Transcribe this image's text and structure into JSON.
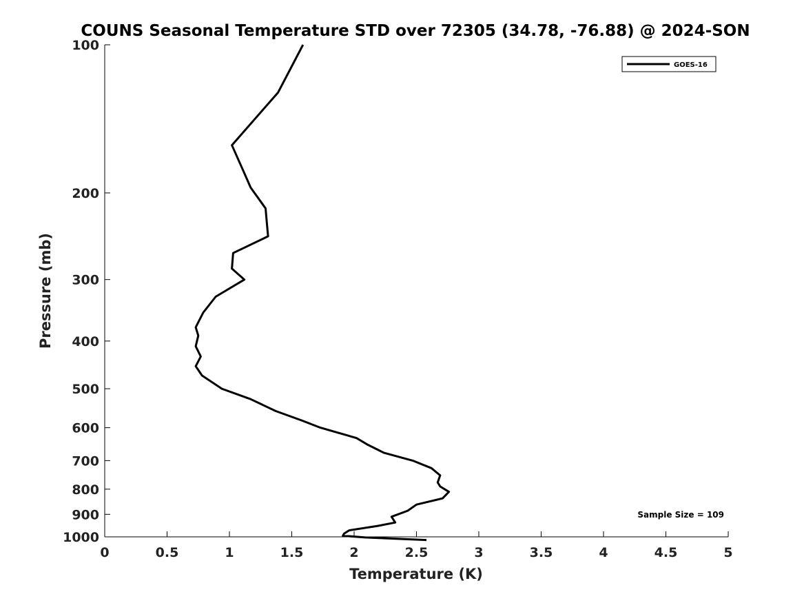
{
  "chart_data": {
    "type": "line",
    "title": "COUNS Seasonal Temperature STD over 72305 (34.78, -76.88) @ 2024-SON",
    "xlabel": "Temperature (K)",
    "ylabel": "Pressure (mb)",
    "xlim": [
      0,
      5
    ],
    "ylim": [
      100,
      1000
    ],
    "y_scale": "log",
    "y_direction": "reversed",
    "x_ticks": [
      0,
      0.5,
      1,
      1.5,
      2,
      2.5,
      3,
      3.5,
      4,
      4.5,
      5
    ],
    "x_tick_labels": [
      "0",
      "0.5",
      "1",
      "1.5",
      "2",
      "2.5",
      "3",
      "3.5",
      "4",
      "4.5",
      "5"
    ],
    "y_ticks": [
      100,
      200,
      300,
      400,
      500,
      600,
      700,
      800,
      900,
      1000
    ],
    "y_tick_labels": [
      "100",
      "200",
      "300",
      "400",
      "500",
      "600",
      "700",
      "800",
      "900",
      "1000"
    ],
    "grid": false,
    "legend_position": "top-right",
    "series": [
      {
        "name": "GOES-16",
        "color": "#000000",
        "x": [
          1.59,
          1.39,
          1.02,
          1.11,
          1.17,
          1.29,
          1.3,
          1.31,
          1.03,
          1.02,
          1.12,
          0.89,
          0.79,
          0.73,
          0.75,
          0.73,
          0.77,
          0.73,
          0.78,
          0.94,
          1.17,
          1.37,
          1.58,
          1.73,
          2.02,
          2.11,
          2.24,
          2.47,
          2.62,
          2.69,
          2.67,
          2.69,
          2.76,
          2.71,
          2.5,
          2.43,
          2.3,
          2.33,
          2.19,
          1.96,
          1.92,
          1.91,
          2.09,
          2.58
        ],
        "y": [
          100,
          125,
          160,
          180,
          195,
          215,
          230,
          245,
          265,
          285,
          300,
          325,
          350,
          375,
          390,
          410,
          430,
          450,
          470,
          500,
          525,
          555,
          580,
          600,
          630,
          650,
          675,
          700,
          725,
          750,
          775,
          790,
          810,
          835,
          860,
          885,
          910,
          935,
          950,
          970,
          985,
          995,
          1003,
          1015
        ]
      }
    ],
    "annotations": [
      {
        "text": "Sample Size = 109",
        "position": "bottom-right"
      }
    ]
  }
}
